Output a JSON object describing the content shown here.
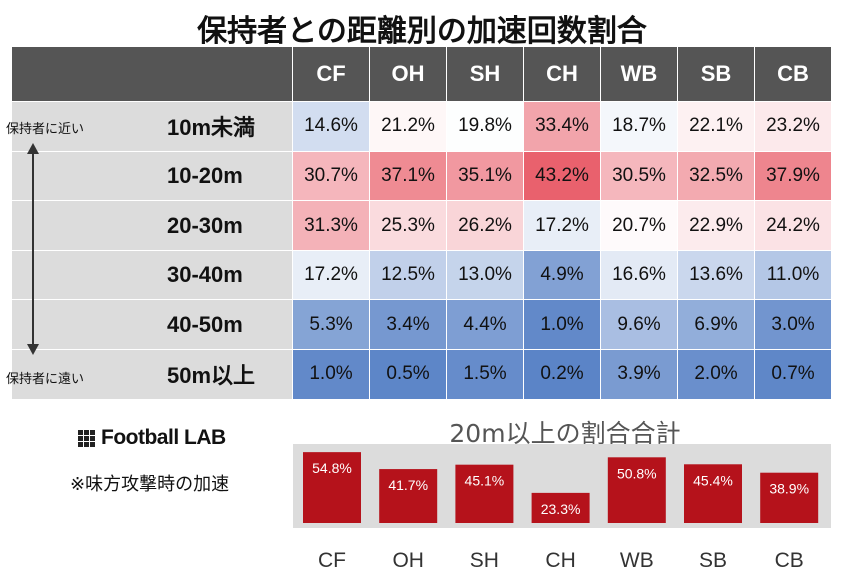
{
  "title": "保持者との距離別の加速回数割合",
  "heatmap": {
    "columns": [
      "CF",
      "OH",
      "SH",
      "CH",
      "WB",
      "SB",
      "CB"
    ],
    "rows": [
      {
        "label": "10m未満",
        "values": [
          "14.6%",
          "21.2%",
          "19.8%",
          "33.4%",
          "18.7%",
          "22.1%",
          "23.2%"
        ]
      },
      {
        "label": "10-20m",
        "values": [
          "30.7%",
          "37.1%",
          "35.1%",
          "43.2%",
          "30.5%",
          "32.5%",
          "37.9%"
        ]
      },
      {
        "label": "20-30m",
        "values": [
          "31.3%",
          "25.3%",
          "26.2%",
          "17.2%",
          "20.7%",
          "22.9%",
          "24.2%"
        ]
      },
      {
        "label": "30-40m",
        "values": [
          "17.2%",
          "12.5%",
          "13.0%",
          "4.9%",
          "16.6%",
          "13.6%",
          "11.0%"
        ]
      },
      {
        "label": "40-50m",
        "values": [
          "5.3%",
          "3.4%",
          "4.4%",
          "1.0%",
          "9.6%",
          "6.9%",
          "3.0%"
        ]
      },
      {
        "label": "50m以上",
        "values": [
          "1.0%",
          "0.5%",
          "1.5%",
          "0.2%",
          "3.9%",
          "2.0%",
          "0.7%"
        ]
      }
    ],
    "near_label": "保持者に近い",
    "far_label": "保持者に遠い",
    "colors": {
      "header": "#555555",
      "label_bg": "#dcdcdc",
      "high": "#e9616d",
      "mid": "#ffffff",
      "low": "#5b84c7"
    }
  },
  "logo_text": "Football LAB",
  "note": "※味方攻撃時の加速",
  "chart_data": {
    "type": "bar",
    "title": "20m以上の割合合計",
    "categories": [
      "CF",
      "OH",
      "SH",
      "CH",
      "WB",
      "SB",
      "CB"
    ],
    "values": [
      54.8,
      41.7,
      45.1,
      23.3,
      50.8,
      45.4,
      38.9
    ],
    "labels": [
      "54.8%",
      "41.7%",
      "45.1%",
      "23.3%",
      "50.8%",
      "45.4%",
      "38.9%"
    ],
    "bar_color": "#b5121b",
    "ylim": [
      0,
      58
    ]
  }
}
